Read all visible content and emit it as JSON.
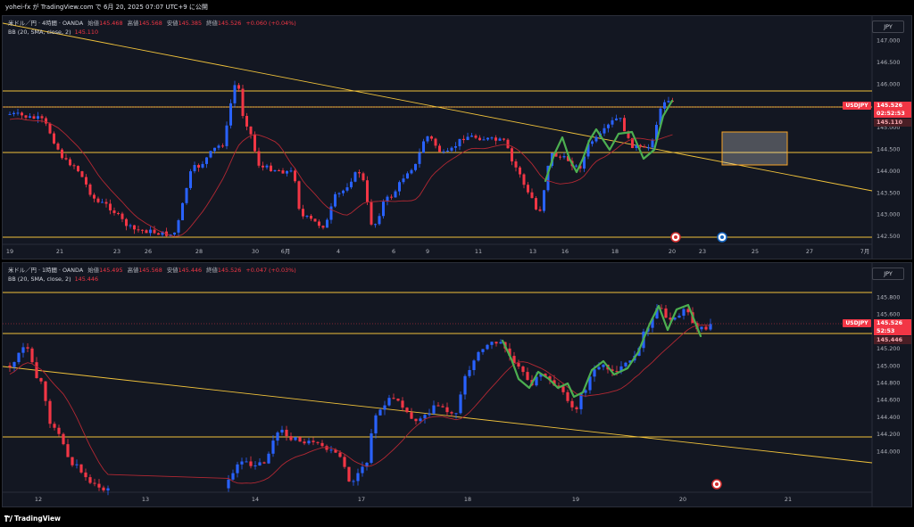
{
  "header": {
    "title": "yohei-fx が TradingView.com で 6月 20, 2025 07:07 UTC+9 に公開"
  },
  "footer": {
    "brand": "TradingView"
  },
  "top": {
    "legend": {
      "symbol": "米ドル／円 · 4時間 · OANDA",
      "open_label": "始値",
      "open": "145.468",
      "high_label": "高値",
      "high": "145.568",
      "low_label": "安値",
      "low": "145.385",
      "close_label": "終値",
      "close": "145.526",
      "change": "+0.060 (+0.04%)",
      "bb_label": "BB (20, SMA, close, 2)",
      "bb_value": "145.110"
    },
    "currency_button": "JPY",
    "symbol_tag": "USDJPY",
    "price_tag": "145.526",
    "countdown_tag": "02:52:53",
    "bb_tag": "145.110",
    "price_axis": [
      "147.000",
      "146.500",
      "146.000",
      "145.500",
      "145.000",
      "144.500",
      "144.000",
      "143.500",
      "143.000",
      "142.500"
    ],
    "time_axis": [
      "19",
      "21",
      "23",
      "26",
      "28",
      "30",
      "6月",
      "4",
      "6",
      "9",
      "11",
      "13",
      "16",
      "18",
      "20",
      "23",
      "25",
      "27",
      "7月"
    ]
  },
  "bottom": {
    "legend": {
      "symbol": "米ドル／円 · 1時間 · OANDA",
      "open_label": "始値",
      "open": "145.495",
      "high_label": "高値",
      "high": "145.568",
      "low_label": "安値",
      "low": "145.446",
      "close_label": "終値",
      "close": "145.526",
      "change": "+0.047 (+0.03%)",
      "bb_label": "BB (20, SMA, close, 2)",
      "bb_value": "145.446"
    },
    "currency_button": "JPY",
    "symbol_tag": "USDJPY",
    "price_tag": "145.526",
    "countdown_tag": "52:53",
    "bb_tag": "145.446",
    "price_axis": [
      "145.800",
      "145.600",
      "145.400",
      "145.200",
      "145.000",
      "144.800",
      "144.600",
      "144.400",
      "144.200",
      "144.000"
    ],
    "time_axis": [
      "12",
      "13",
      "14",
      "17",
      "18",
      "19",
      "20",
      "21"
    ]
  },
  "colors": {
    "up": "#2962ff",
    "down": "#f23645",
    "bb": "#b22833",
    "level": "#f0c23b",
    "wave": "#4caf50",
    "box": "#f7a325"
  }
}
